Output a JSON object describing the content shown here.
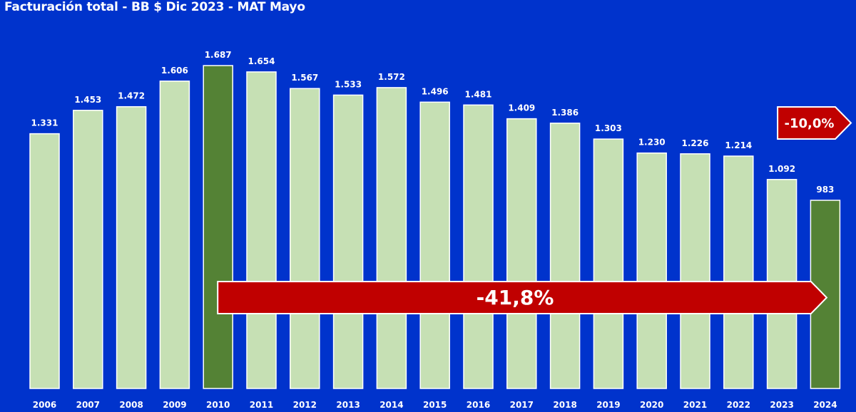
{
  "chart_data": {
    "type": "bar",
    "title": "Facturación total - BB $ Dic 2023 - MAT Mayo",
    "xlabel": "",
    "ylabel": "",
    "categories": [
      "2006",
      "2007",
      "2008",
      "2009",
      "2010",
      "2011",
      "2012",
      "2013",
      "2014",
      "2015",
      "2016",
      "2017",
      "2018",
      "2019",
      "2020",
      "2021",
      "2022",
      "2023",
      "2024"
    ],
    "values": [
      1331,
      1453,
      1472,
      1606,
      1687,
      1654,
      1567,
      1533,
      1572,
      1496,
      1481,
      1409,
      1386,
      1303,
      1230,
      1226,
      1214,
      1092,
      983
    ],
    "value_labels": [
      "1.331",
      "1.453",
      "1.472",
      "1.606",
      "1.687",
      "1.654",
      "1.567",
      "1.533",
      "1.572",
      "1.496",
      "1.481",
      "1.409",
      "1.386",
      "1.303",
      "1.230",
      "1.226",
      "1.214",
      "1.092",
      "983"
    ],
    "ylim": [
      0,
      1810
    ],
    "highlighted": [
      "2010",
      "2024"
    ],
    "grid": false,
    "legend": "none",
    "annotations": [
      {
        "text": "-41,8%",
        "from": "2010",
        "to": "2024"
      },
      {
        "text": "-10,0%",
        "from": "2023",
        "to": "2024"
      }
    ],
    "colors": {
      "background": "#0033cc",
      "bar": "#c6e0b4",
      "highlight": "#548235",
      "bar_stroke": "#ffffff",
      "arrow": "#c00000",
      "text": "#ffffff"
    }
  }
}
